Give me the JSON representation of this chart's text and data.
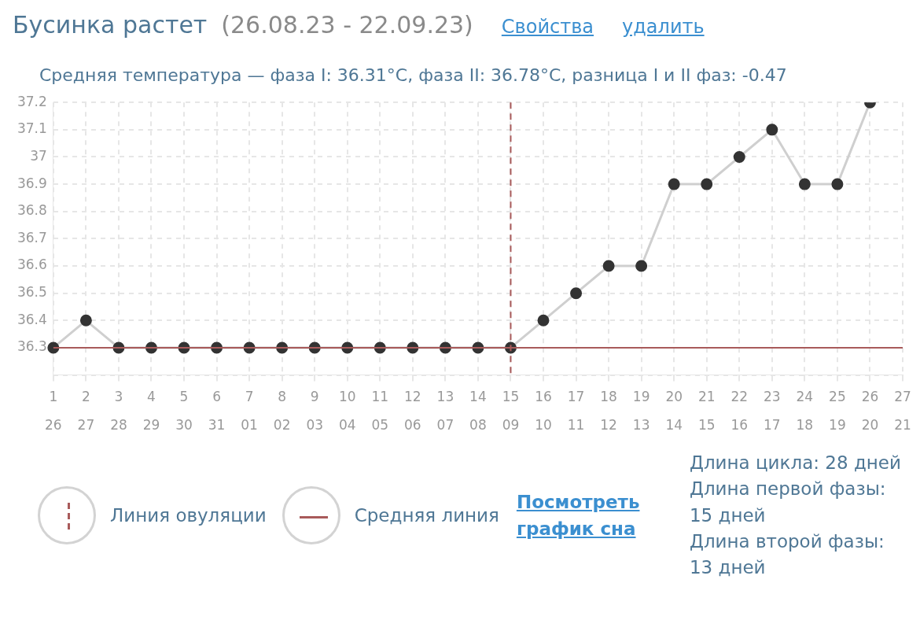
{
  "chart_data": {
    "type": "line",
    "title": "Бусинка растет",
    "subtitle": "(26.08.23 - 22.09.23)",
    "annotations": [
      "Свойства",
      "удалить",
      "Средняя температура — фаза I: 36.31°C, фаза II: 36.78°C, разница I и II фаз: -0.47",
      "Посмотреть график сна",
      "Длина цикла: 28 дней",
      "Длина первой фазы:",
      "15 дней",
      "Длина второй фазы:",
      "13 дней"
    ],
    "categories": [
      "1\n26",
      "2\n27",
      "3\n28",
      "4\n29",
      "5\n30",
      "6\n31",
      "7\n01",
      "8\n02",
      "9\n03",
      "10\n04",
      "11\n05",
      "12\n06",
      "13\n07",
      "14\n08",
      "15\n09",
      "16\n10",
      "17\n11",
      "18\n12",
      "19\n13",
      "20\n14",
      "21\n15",
      "22\n16",
      "23\n17",
      "24\n18",
      "25\n19",
      "26\n20",
      "27\n21"
    ],
    "series": [
      {
        "color": "#333333",
        "values": [
          36.3,
          36.4,
          36.3,
          36.3,
          36.3,
          36.3,
          36.3,
          36.3,
          36.3,
          36.3,
          36.3,
          36.3,
          36.3,
          36.3,
          36.3,
          36.4,
          36.5,
          36.6,
          36.6,
          36.9,
          36.9,
          37.0,
          37.1,
          36.9,
          36.9,
          37.2,
          null
        ]
      }
    ],
    "ylim": [
      36.2,
      37.2
    ],
    "yticks": [
      {
        "value": 36.2,
        "label": null
      },
      36.3,
      36.4,
      36.5,
      36.6,
      36.7,
      36.8,
      36.9,
      37,
      37.1,
      37.2
    ],
    "ref_lines": [
      {
        "axis": "x",
        "value": "15\n09",
        "label": "Линия овуляции",
        "color": "#a85a5a",
        "line_style": "dashed"
      },
      {
        "axis": "y",
        "value": 36.3,
        "label": "Средняя линия",
        "color": "#a85a5a",
        "line_style": "solid"
      }
    ],
    "grid": true,
    "legend": "bottom left",
    "marker": "circle",
    "line_style": "solid"
  }
}
